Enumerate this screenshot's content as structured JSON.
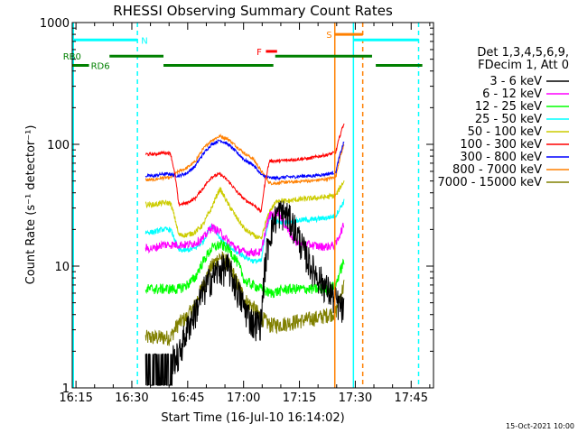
{
  "chart_data": {
    "type": "line",
    "title": "RHESSI Observing Summary Count Rates",
    "xlabel": "Start Time (16-Jul-10 16:14:02)",
    "ylabel": "Count Rate (s⁻¹ detector⁻¹)",
    "x_unit": "minutes since 16:14:02",
    "xlim": [
      0,
      97
    ],
    "ylim": [
      1,
      1000
    ],
    "y_scale": "log",
    "x_ticks": [
      {
        "label": "16:15",
        "x": 1
      },
      {
        "label": "16:30",
        "x": 16
      },
      {
        "label": "16:45",
        "x": 31
      },
      {
        "label": "17:00",
        "x": 46
      },
      {
        "label": "17:15",
        "x": 61
      },
      {
        "label": "17:30",
        "x": 76
      },
      {
        "label": "17:45",
        "x": 91
      }
    ],
    "y_ticks": [
      {
        "label": "1",
        "y": 1
      },
      {
        "label": "10",
        "y": 10
      },
      {
        "label": "100",
        "y": 100
      },
      {
        "label": "1000",
        "y": 1000
      }
    ],
    "legend_header": [
      "Det 1,3,4,5,6,9,",
      "FDecim 1, Att 0"
    ],
    "legend_position": "right",
    "series": [
      {
        "name": "3 - 6 keV",
        "color": "#000000",
        "base": [
          0,
          0,
          0,
          1.9,
          1.9,
          1.8,
          1.8,
          1.8,
          3.0,
          4.2,
          6.2,
          8.2,
          9.5,
          9.8,
          6.5,
          4.5,
          3.4,
          3.5,
          18,
          28,
          27,
          21,
          14,
          10,
          8,
          6.5,
          5.2,
          4.3
        ],
        "noise": 0.3
      },
      {
        "name": "6 - 12 keV",
        "color": "#ff00ff",
        "base": [
          0,
          0,
          0,
          14,
          14,
          15,
          15,
          15,
          15,
          15.5,
          17,
          21,
          19,
          16,
          14,
          13,
          13,
          13,
          26,
          28,
          21,
          16,
          15,
          15,
          14.5,
          14.5,
          15,
          22
        ],
        "noise": 0.08
      },
      {
        "name": "12 - 25 keV",
        "color": "#00ff00",
        "base": [
          0,
          0,
          0,
          6.5,
          6.5,
          6.5,
          6.5,
          6.5,
          7,
          8,
          11,
          14,
          15,
          14,
          11,
          7.5,
          7,
          6.5,
          6,
          6.2,
          6.5,
          6.5,
          6.5,
          6.5,
          6.5,
          6.5,
          7,
          11
        ],
        "noise": 0.1
      },
      {
        "name": "25 - 50 keV",
        "color": "#00ffff",
        "base": [
          0,
          0,
          0,
          19,
          19,
          20,
          20,
          13.5,
          13.5,
          14,
          16,
          22,
          17,
          14.5,
          13,
          12,
          11,
          11,
          25,
          23,
          23,
          23.5,
          24,
          24,
          24.5,
          25,
          26,
          34
        ],
        "noise": 0.05
      },
      {
        "name": "50 - 100 keV",
        "color": "#cccc00",
        "base": [
          0,
          0,
          0,
          32,
          32,
          33,
          33,
          18,
          18,
          19,
          22,
          30,
          43,
          32,
          25,
          20,
          18,
          16.5,
          28,
          35,
          34,
          35,
          35.5,
          36,
          36.5,
          37,
          38,
          50
        ],
        "noise": 0.05
      },
      {
        "name": "100 - 300 keV",
        "color": "#ff0000",
        "base": [
          0,
          0,
          0,
          83,
          83,
          85,
          85,
          32,
          33,
          36,
          44,
          54,
          57,
          50,
          41,
          35,
          32,
          28,
          73,
          73,
          74,
          75,
          76,
          77,
          80,
          82,
          86,
          150
        ],
        "noise": 0.03
      },
      {
        "name": "300 - 800 keV",
        "color": "#0000ff",
        "base": [
          0,
          0,
          0,
          55,
          55,
          57,
          57,
          55,
          58,
          66,
          84,
          100,
          108,
          100,
          86,
          74,
          68,
          56,
          53,
          53,
          54,
          54,
          55,
          55,
          56,
          57,
          59,
          105
        ],
        "noise": 0.03
      },
      {
        "name": "800 - 7000 keV",
        "color": "#ff8000",
        "base": [
          0,
          0,
          0,
          51,
          51,
          53,
          53,
          60,
          64,
          72,
          92,
          108,
          117,
          110,
          96,
          84,
          76,
          60,
          48,
          48,
          49,
          49,
          50,
          50,
          51,
          52,
          54,
          100
        ],
        "noise": 0.03
      },
      {
        "name": "7000 - 15000 keV",
        "color": "#808000",
        "base": [
          0,
          0,
          0,
          2.6,
          2.6,
          2.6,
          2.6,
          3.4,
          3.8,
          4.8,
          7,
          10,
          12,
          10.5,
          7.5,
          5.3,
          4.6,
          3.8,
          3.3,
          3.3,
          3.4,
          3.5,
          3.6,
          3.7,
          3.8,
          4,
          4.2,
          7
        ],
        "noise": 0.15
      }
    ],
    "data_window": [
      13,
      73
    ],
    "flag_bars": [
      {
        "label": "N",
        "color": "#00ffff",
        "y": 720,
        "segments": [
          [
            0,
            17.5
          ],
          [
            75.5,
            93
          ]
        ]
      },
      {
        "label": "S",
        "color": "#ff8000",
        "y": 800,
        "segments": [
          [
            70.5,
            78
          ]
        ]
      },
      {
        "label": "F",
        "color": "#ff0000",
        "y": 580,
        "segments": [
          [
            52,
            55
          ]
        ]
      },
      {
        "label": "RB0",
        "color": "#008000",
        "y": 530,
        "segments": [
          [
            10,
            24.5
          ],
          [
            54.5,
            80.5
          ]
        ]
      },
      {
        "label": "RD6",
        "color": "#008000",
        "y": 445,
        "segments": [
          [
            0,
            4.5
          ],
          [
            24.5,
            54
          ],
          [
            81.5,
            94
          ]
        ]
      }
    ],
    "vlines": [
      {
        "x": 0.3,
        "color": "#00ffff",
        "style": "solid"
      },
      {
        "x": 17.5,
        "color": "#00ffff",
        "style": "dashed"
      },
      {
        "x": 70.5,
        "color": "#ff8000",
        "style": "solid"
      },
      {
        "x": 75.5,
        "color": "#00ffff",
        "style": "solid"
      },
      {
        "x": 78.0,
        "color": "#ff8000",
        "style": "dashed"
      },
      {
        "x": 93.0,
        "color": "#00ffff",
        "style": "dashed"
      }
    ],
    "footer_date": "15-Oct-2021 10:00"
  }
}
